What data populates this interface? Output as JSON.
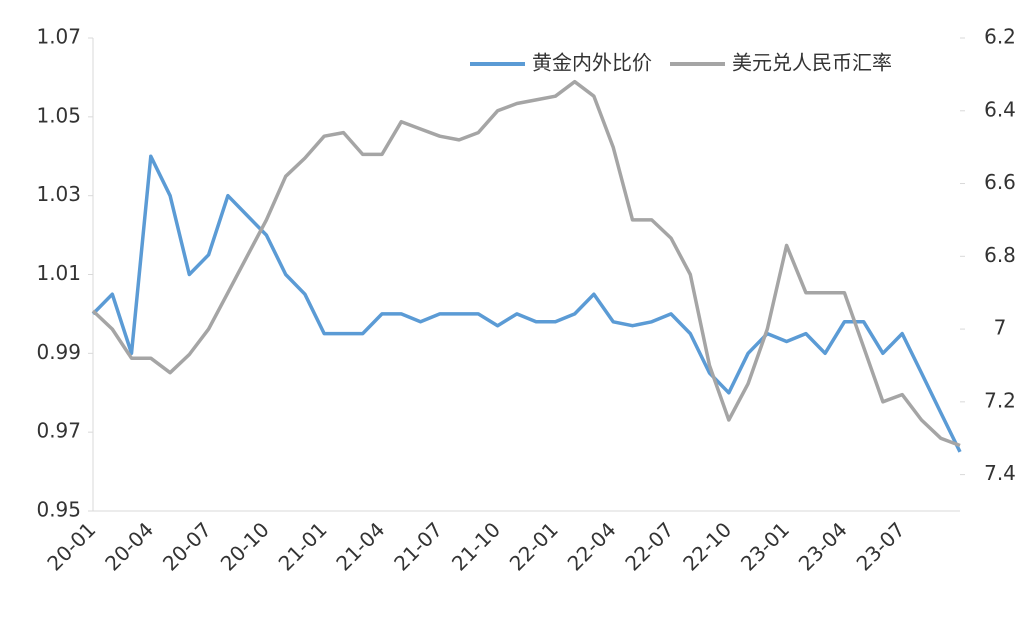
{
  "chart_data": {
    "type": "line",
    "categories": [
      "20-01",
      null,
      null,
      "20-04",
      null,
      null,
      "20-07",
      null,
      null,
      "20-10",
      null,
      null,
      "21-01",
      null,
      null,
      "21-04",
      null,
      null,
      "21-07",
      null,
      null,
      "21-10",
      null,
      null,
      "22-01",
      null,
      null,
      "22-04",
      null,
      null,
      "22-07",
      null,
      null,
      "22-10",
      null,
      null,
      "23-01",
      null,
      null,
      "23-04",
      null,
      null,
      "23-07",
      null,
      null,
      null
    ],
    "series": [
      {
        "name": "黄金内外比价",
        "color": "#5b9bd5",
        "axis": "y",
        "values": [
          1.0,
          1.005,
          0.99,
          1.04,
          1.03,
          1.01,
          1.015,
          1.03,
          1.025,
          1.02,
          1.01,
          1.005,
          0.995,
          0.995,
          0.995,
          1.0,
          1.0,
          0.998,
          1.0,
          1.0,
          1.0,
          0.997,
          1.0,
          0.998,
          0.998,
          1.0,
          1.005,
          0.998,
          0.997,
          0.998,
          1.0,
          0.995,
          0.985,
          0.98,
          0.99,
          0.995,
          0.993,
          0.995,
          0.99,
          0.998,
          0.998,
          0.99,
          0.995,
          0.985,
          0.975,
          0.965
        ]
      },
      {
        "name": "美元兑人民币汇率",
        "color": "#a5a5a5",
        "axis": "y2",
        "values": [
          6.95,
          7.0,
          7.08,
          7.08,
          7.12,
          7.07,
          7.0,
          6.9,
          6.8,
          6.7,
          6.58,
          6.53,
          6.47,
          6.46,
          6.52,
          6.52,
          6.43,
          6.45,
          6.47,
          6.48,
          6.46,
          6.4,
          6.38,
          6.37,
          6.36,
          6.32,
          6.36,
          6.5,
          6.7,
          6.7,
          6.75,
          6.85,
          7.1,
          7.25,
          7.15,
          7.0,
          6.77,
          6.9,
          6.9,
          6.9,
          7.05,
          7.2,
          7.18,
          7.25,
          7.3,
          7.32
        ]
      }
    ],
    "ylim": [
      0.95,
      1.07
    ],
    "yticks": [
      0.95,
      0.97,
      0.99,
      1.01,
      1.03,
      1.05,
      1.07
    ],
    "y2lim": [
      7.5,
      6.2
    ],
    "y2ticks": [
      6.2,
      6.4,
      6.6,
      6.8,
      7,
      7.2,
      7.4
    ],
    "legend": "top-right"
  }
}
